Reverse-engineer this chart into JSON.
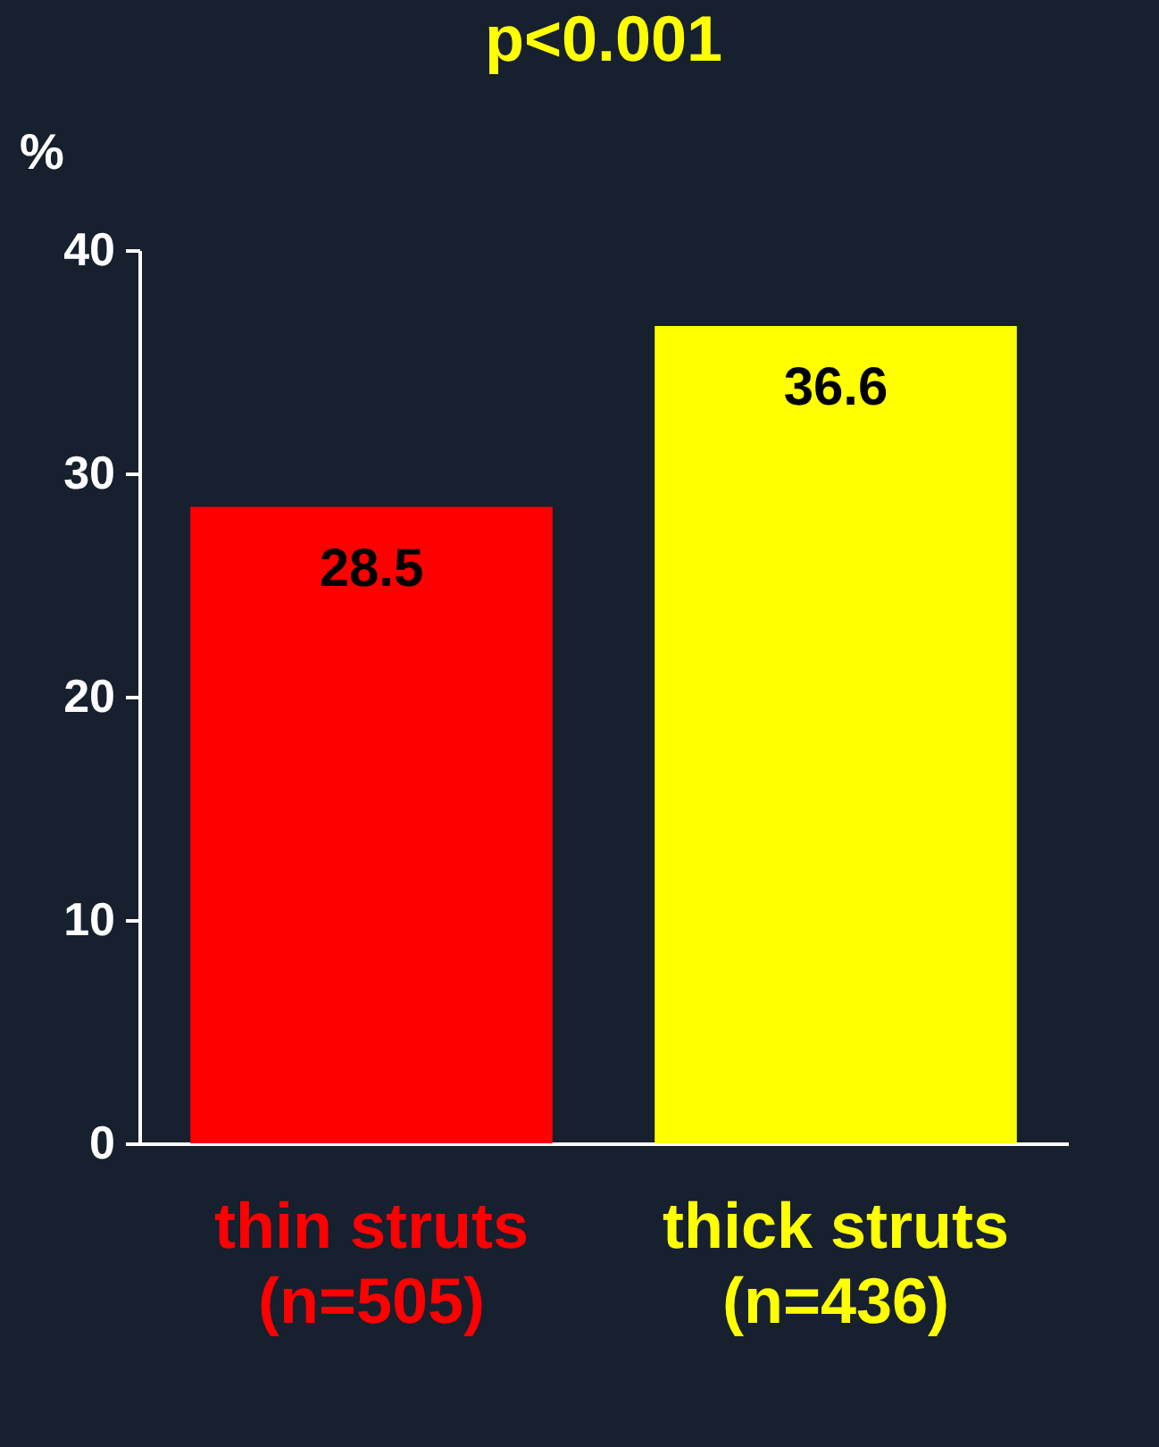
{
  "chart_data": {
    "type": "bar",
    "ylabel": "%",
    "annotations": [
      "p<0.001"
    ],
    "categories": [
      "thin struts\n(n=505)",
      "thick struts\n(n=436)"
    ],
    "values": [
      28.5,
      36.6
    ],
    "colors": [
      "#ff0000",
      "#ffff00"
    ],
    "ylim": [
      0,
      40
    ],
    "yticks": [
      0,
      10,
      20,
      30,
      40
    ],
    "grid": false,
    "data_labels": true
  }
}
